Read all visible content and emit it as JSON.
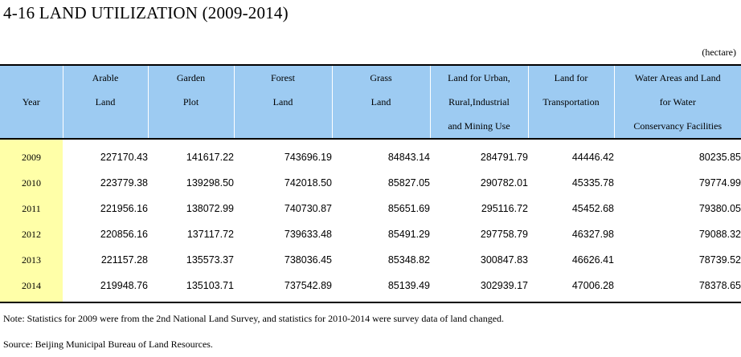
{
  "title": "4-16  LAND UTILIZATION (2009-2014)",
  "unit": "(hectare)",
  "headers": [
    [
      "Year"
    ],
    [
      "Arable",
      "Land"
    ],
    [
      "Garden",
      "Plot"
    ],
    [
      "Forest",
      "Land"
    ],
    [
      "Grass",
      "Land"
    ],
    [
      "Land for Urban,",
      "Rural,Industrial",
      "and Mining Use"
    ],
    [
      "Land for",
      "Transportation"
    ],
    [
      "Water Areas and Land",
      "for Water",
      "Conservancy Facilities"
    ]
  ],
  "rows": [
    [
      "2009",
      "227170.43",
      "141617.22",
      "743696.19",
      "84843.14",
      "284791.79",
      "44446.42",
      "80235.85"
    ],
    [
      "2010",
      "223779.38",
      "139298.50",
      "742018.50",
      "85827.05",
      "290782.01",
      "45335.78",
      "79774.99"
    ],
    [
      "2011",
      "221956.16",
      "138072.99",
      "740730.87",
      "85651.69",
      "295116.72",
      "45452.68",
      "79380.05"
    ],
    [
      "2012",
      "220856.16",
      "137117.72",
      "739633.48",
      "85491.29",
      "297758.79",
      "46327.98",
      "79088.32"
    ],
    [
      "2013",
      "221157.28",
      "135573.37",
      "738036.45",
      "85348.82",
      "300847.83",
      "46626.41",
      "78739.52"
    ],
    [
      "2014",
      "219948.76",
      "135103.71",
      "737542.89",
      "85139.49",
      "302939.17",
      "47006.28",
      "78378.65"
    ]
  ],
  "notes": {
    "note": "Note: Statistics for  2009 were from the 2nd National Land Survey, and statistics for 2010-2014 were survey data of land changed.",
    "source": "Source: Beijing Municipal Bureau of Land Resources."
  },
  "colors": {
    "header_bg": "#9dcbf2",
    "year_bg": "#ffffa8"
  }
}
